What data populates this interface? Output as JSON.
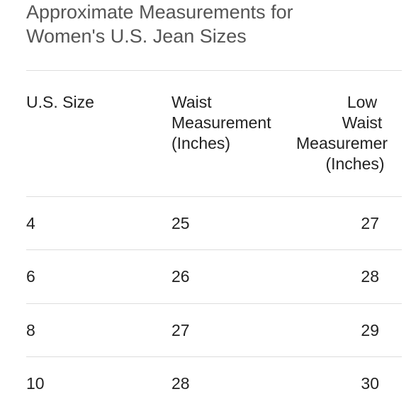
{
  "title": {
    "line1": "Approximate Measurements for",
    "line2": "Women's U.S. Jean Sizes"
  },
  "table": {
    "headers": {
      "size": "U.S. Size",
      "waist": [
        "Waist",
        "Measurement",
        "(Inches)"
      ],
      "low_waist": [
        "Low",
        "Waist",
        "Measuremer",
        "(Inches)"
      ]
    },
    "rows": [
      {
        "size": "4",
        "waist": "25",
        "low_waist": "27"
      },
      {
        "size": "6",
        "waist": "26",
        "low_waist": "28"
      },
      {
        "size": "8",
        "waist": "27",
        "low_waist": "29"
      },
      {
        "size": "10",
        "waist": "28",
        "low_waist": "30"
      }
    ]
  },
  "colors": {
    "title_text": "#555555",
    "body_text": "#222222",
    "divider": "#dddddd",
    "background": "#ffffff"
  }
}
